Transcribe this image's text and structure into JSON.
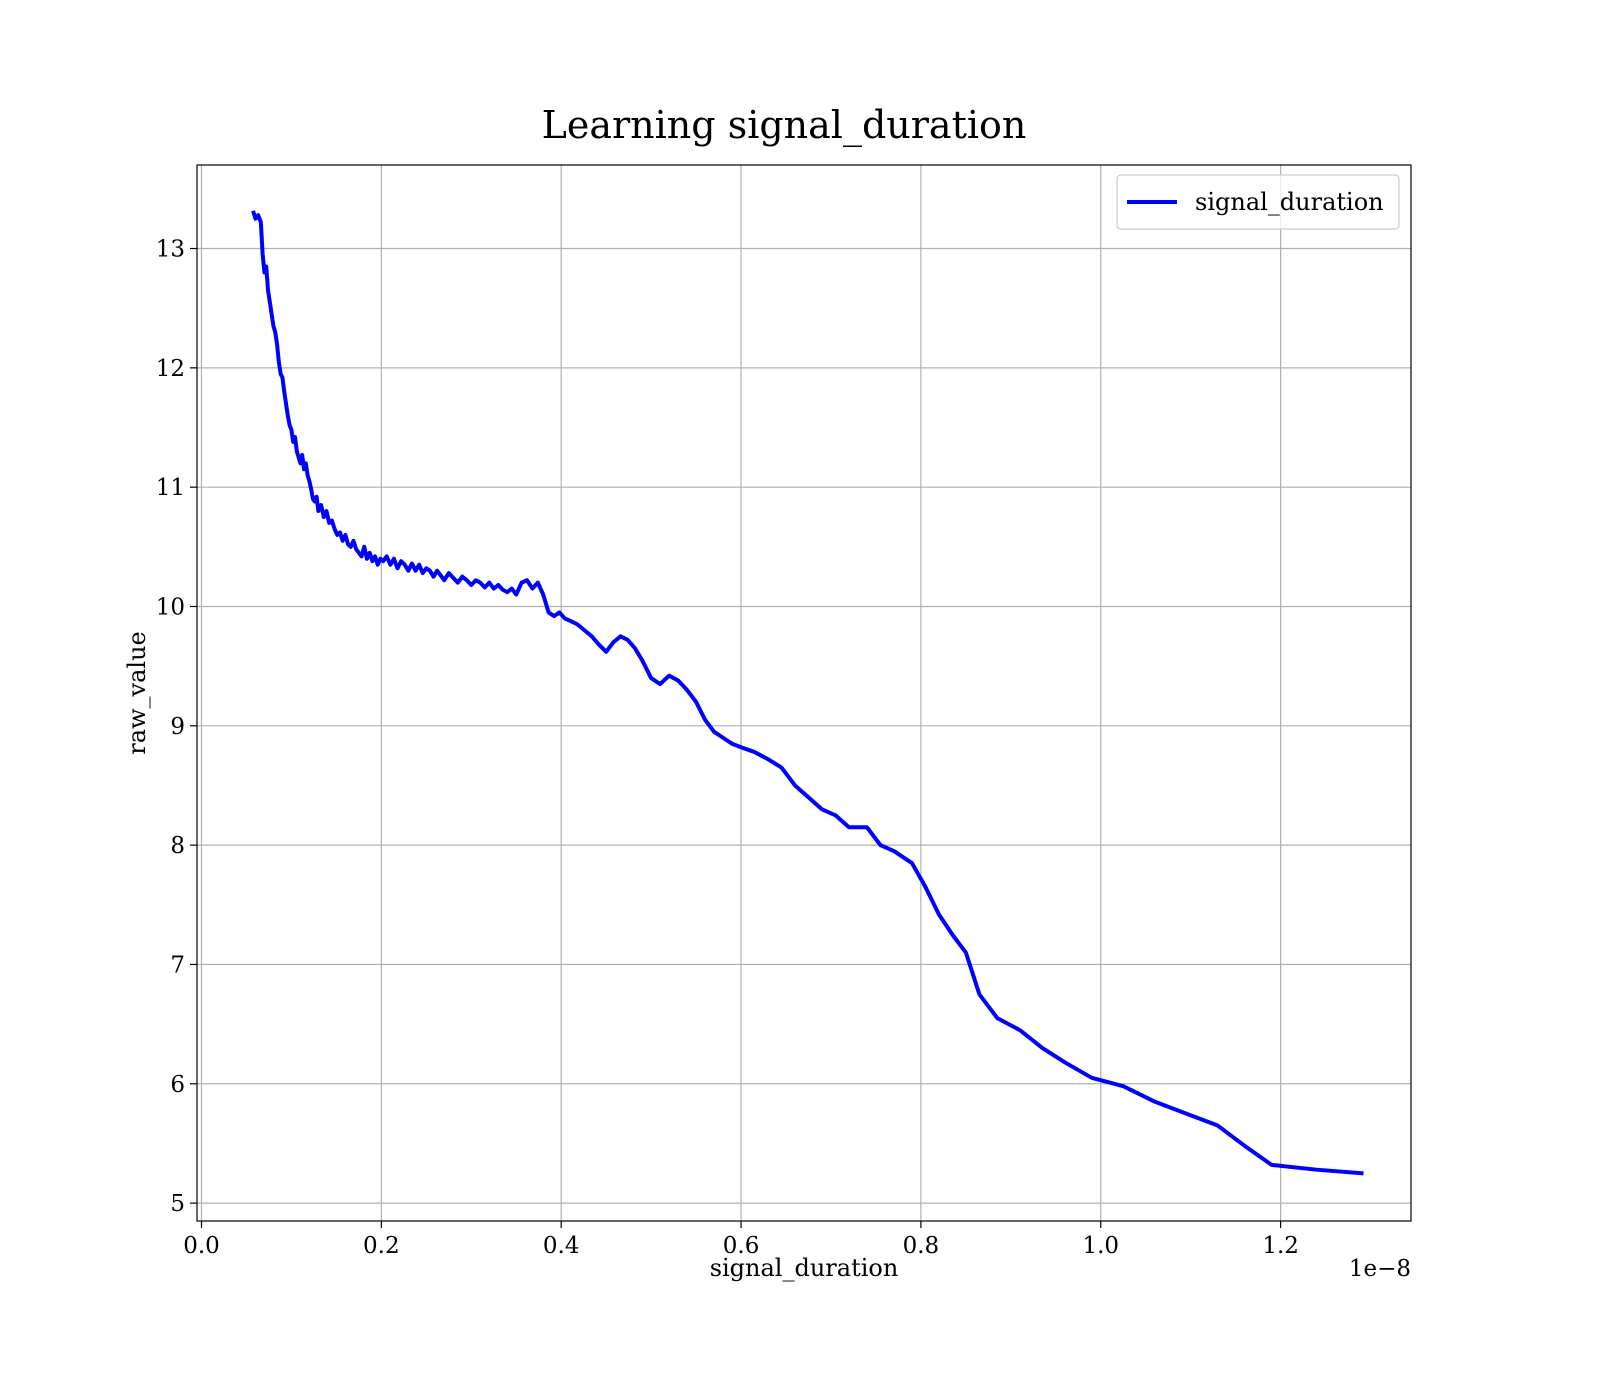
{
  "chart_data": {
    "type": "line",
    "title": "Learning signal_duration",
    "xlabel": "signal_duration",
    "ylabel": "raw_value",
    "x_offset_label": "1e−8",
    "xlim": [
      -0.005,
      1.345
    ],
    "ylim": [
      4.85,
      13.7
    ],
    "x_ticks": [
      0.0,
      0.2,
      0.4,
      0.6,
      0.8,
      1.0,
      1.2
    ],
    "x_tick_labels": [
      "0.0",
      "0.2",
      "0.4",
      "0.6",
      "0.8",
      "1.0",
      "1.2"
    ],
    "y_ticks": [
      5,
      6,
      7,
      8,
      9,
      10,
      11,
      12,
      13
    ],
    "y_tick_labels": [
      "5",
      "6",
      "7",
      "8",
      "9",
      "10",
      "11",
      "12",
      "13"
    ],
    "grid": true,
    "legend_position": "top-right",
    "series": [
      {
        "name": "signal_duration",
        "color": "#0000ff",
        "x": [
          0.058,
          0.06,
          0.063,
          0.066,
          0.068,
          0.07,
          0.072,
          0.074,
          0.076,
          0.078,
          0.08,
          0.082,
          0.084,
          0.086,
          0.088,
          0.09,
          0.092,
          0.094,
          0.096,
          0.098,
          0.1,
          0.102,
          0.104,
          0.106,
          0.108,
          0.11,
          0.112,
          0.114,
          0.116,
          0.118,
          0.12,
          0.122,
          0.124,
          0.126,
          0.128,
          0.13,
          0.133,
          0.136,
          0.139,
          0.142,
          0.145,
          0.148,
          0.151,
          0.154,
          0.157,
          0.16,
          0.163,
          0.166,
          0.169,
          0.172,
          0.175,
          0.178,
          0.181,
          0.184,
          0.187,
          0.19,
          0.193,
          0.196,
          0.199,
          0.202,
          0.206,
          0.21,
          0.214,
          0.218,
          0.222,
          0.226,
          0.23,
          0.234,
          0.238,
          0.242,
          0.246,
          0.25,
          0.254,
          0.258,
          0.262,
          0.266,
          0.27,
          0.275,
          0.28,
          0.285,
          0.29,
          0.295,
          0.3,
          0.305,
          0.31,
          0.315,
          0.32,
          0.325,
          0.33,
          0.335,
          0.34,
          0.345,
          0.35,
          0.356,
          0.362,
          0.368,
          0.374,
          0.38,
          0.386,
          0.392,
          0.398,
          0.404,
          0.41,
          0.418,
          0.426,
          0.434,
          0.442,
          0.45,
          0.458,
          0.466,
          0.474,
          0.482,
          0.49,
          0.5,
          0.51,
          0.52,
          0.53,
          0.54,
          0.55,
          0.56,
          0.57,
          0.58,
          0.59,
          0.6,
          0.615,
          0.63,
          0.645,
          0.66,
          0.675,
          0.69,
          0.705,
          0.72,
          0.74,
          0.755,
          0.77,
          0.79,
          0.805,
          0.82,
          0.835,
          0.85,
          0.865,
          0.885,
          0.91,
          0.935,
          0.96,
          0.99,
          1.025,
          1.06,
          1.095,
          1.13,
          1.16,
          1.19,
          1.24,
          1.29
        ],
        "y": [
          13.3,
          13.25,
          13.28,
          13.22,
          12.95,
          12.8,
          12.85,
          12.65,
          12.55,
          12.45,
          12.35,
          12.3,
          12.2,
          12.05,
          11.95,
          11.92,
          11.8,
          11.7,
          11.6,
          11.52,
          11.48,
          11.38,
          11.42,
          11.3,
          11.25,
          11.2,
          11.27,
          11.15,
          11.2,
          11.1,
          11.05,
          10.98,
          10.9,
          10.88,
          10.92,
          10.8,
          10.85,
          10.75,
          10.8,
          10.7,
          10.72,
          10.65,
          10.6,
          10.62,
          10.55,
          10.6,
          10.52,
          10.5,
          10.55,
          10.48,
          10.45,
          10.42,
          10.5,
          10.4,
          10.45,
          10.38,
          10.42,
          10.35,
          10.4,
          10.38,
          10.42,
          10.35,
          10.4,
          10.32,
          10.38,
          10.35,
          10.3,
          10.36,
          10.3,
          10.35,
          10.28,
          10.32,
          10.3,
          10.25,
          10.3,
          10.26,
          10.22,
          10.28,
          10.24,
          10.2,
          10.25,
          10.22,
          10.18,
          10.22,
          10.2,
          10.16,
          10.2,
          10.15,
          10.18,
          10.14,
          10.12,
          10.15,
          10.1,
          10.2,
          10.22,
          10.15,
          10.2,
          10.1,
          9.95,
          9.92,
          9.95,
          9.9,
          9.88,
          9.85,
          9.8,
          9.75,
          9.68,
          9.62,
          9.7,
          9.75,
          9.72,
          9.65,
          9.55,
          9.4,
          9.35,
          9.42,
          9.38,
          9.3,
          9.2,
          9.05,
          8.95,
          8.9,
          8.85,
          8.82,
          8.78,
          8.72,
          8.65,
          8.5,
          8.4,
          8.3,
          8.25,
          8.15,
          8.15,
          8.0,
          7.95,
          7.85,
          7.65,
          7.42,
          7.25,
          7.1,
          6.75,
          6.55,
          6.45,
          6.3,
          6.18,
          6.05,
          5.98,
          5.85,
          5.75,
          5.65,
          5.48,
          5.32,
          5.28,
          5.25
        ]
      }
    ]
  }
}
